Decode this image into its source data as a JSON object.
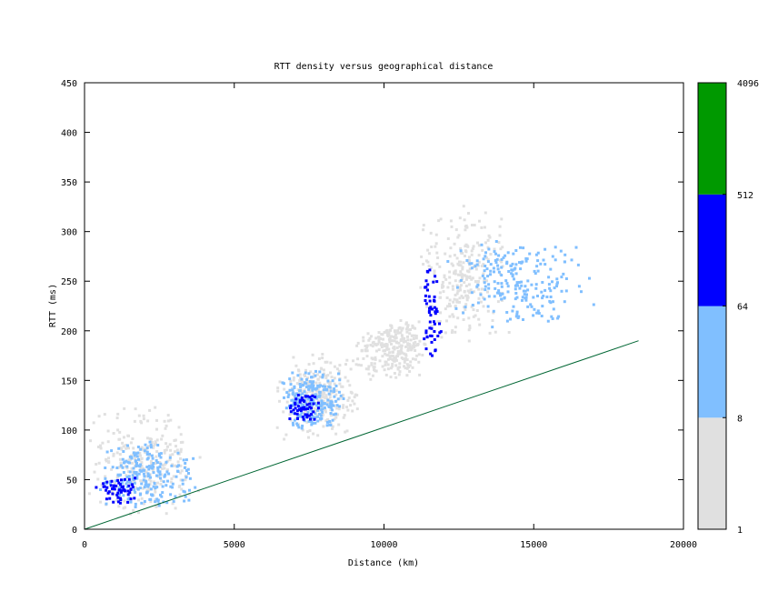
{
  "chart_data": {
    "type": "heatmap",
    "title": "RTT density versus geographical distance",
    "xlabel": "Distance (km)",
    "ylabel": "RTT (ms)",
    "xlim": [
      0,
      20000
    ],
    "ylim": [
      0,
      450
    ],
    "x_ticks": [
      0,
      5000,
      10000,
      15000,
      20000
    ],
    "y_ticks": [
      0,
      50,
      100,
      150,
      200,
      250,
      300,
      350,
      400,
      450
    ],
    "colorbar": {
      "tick_labels": [
        "1",
        "8",
        "64",
        "512",
        "4096"
      ],
      "bands": [
        {
          "from": "1",
          "to": "8",
          "color": "#e0e0e0"
        },
        {
          "from": "8",
          "to": "64",
          "color": "#80bfff"
        },
        {
          "from": "64",
          "to": "512",
          "color": "#0000ff"
        },
        {
          "from": "512",
          "to": "4096",
          "color": "#009900"
        }
      ]
    },
    "reference_line": {
      "color": "#006633",
      "points": [
        [
          0,
          0
        ],
        [
          18500,
          190
        ]
      ]
    },
    "clusters": [
      {
        "x": [
          0,
          3900
        ],
        "y": [
          10,
          130
        ],
        "density": "light",
        "color": "#e0e0e0"
      },
      {
        "x": [
          300,
          3800
        ],
        "y": [
          20,
          90
        ],
        "density": "medium",
        "color": "#80bfff"
      },
      {
        "x": [
          300,
          1800
        ],
        "y": [
          25,
          55
        ],
        "density": "high",
        "color": "#0000ff"
      },
      {
        "x": [
          6300,
          9200
        ],
        "y": [
          90,
          185
        ],
        "density": "light",
        "color": "#e0e0e0"
      },
      {
        "x": [
          6500,
          8700
        ],
        "y": [
          100,
          165
        ],
        "density": "medium",
        "color": "#80bfff"
      },
      {
        "x": [
          6700,
          7800
        ],
        "y": [
          105,
          140
        ],
        "density": "high",
        "color": "#0000ff"
      },
      {
        "x": [
          9000,
          11500
        ],
        "y": [
          150,
          215
        ],
        "density": "light",
        "color": "#e0e0e0"
      },
      {
        "x": [
          11000,
          14200
        ],
        "y": [
          180,
          330
        ],
        "density": "light",
        "color": "#e0e0e0"
      },
      {
        "x": [
          11200,
          11900
        ],
        "y": [
          160,
          270
        ],
        "density": "high",
        "color": "#0000ff"
      },
      {
        "x": [
          12000,
          17000
        ],
        "y": [
          200,
          300
        ],
        "density": "medium",
        "color": "#80bfff"
      }
    ]
  }
}
